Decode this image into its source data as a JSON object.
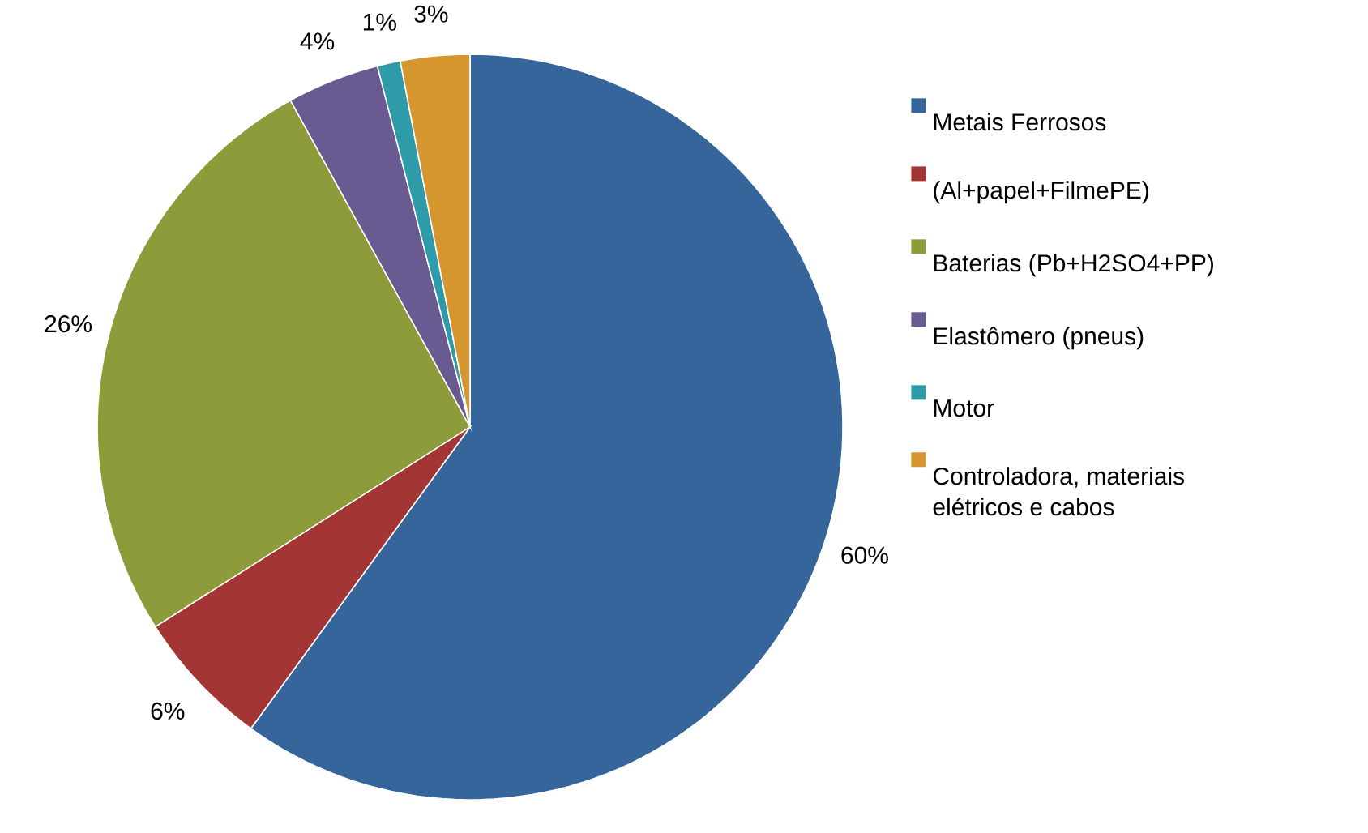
{
  "chart_data": {
    "type": "pie",
    "categories": [
      "Metais Ferrosos",
      "(Al+papel+FilmePE)",
      "Baterias (Pb+H2SO4+PP)",
      "Elastômero (pneus)",
      "Motor",
      "Controladora, materiais elétricos e cabos"
    ],
    "values": [
      60,
      6,
      26,
      4,
      1,
      3
    ],
    "value_labels": [
      "60%",
      "6%",
      "26%",
      "4%",
      "1%",
      "3%"
    ],
    "colors": [
      "#35659a",
      "#a33634",
      "#8e9b3a",
      "#6a5a92",
      "#2f9aa8",
      "#d5962f"
    ],
    "legend": "right"
  }
}
